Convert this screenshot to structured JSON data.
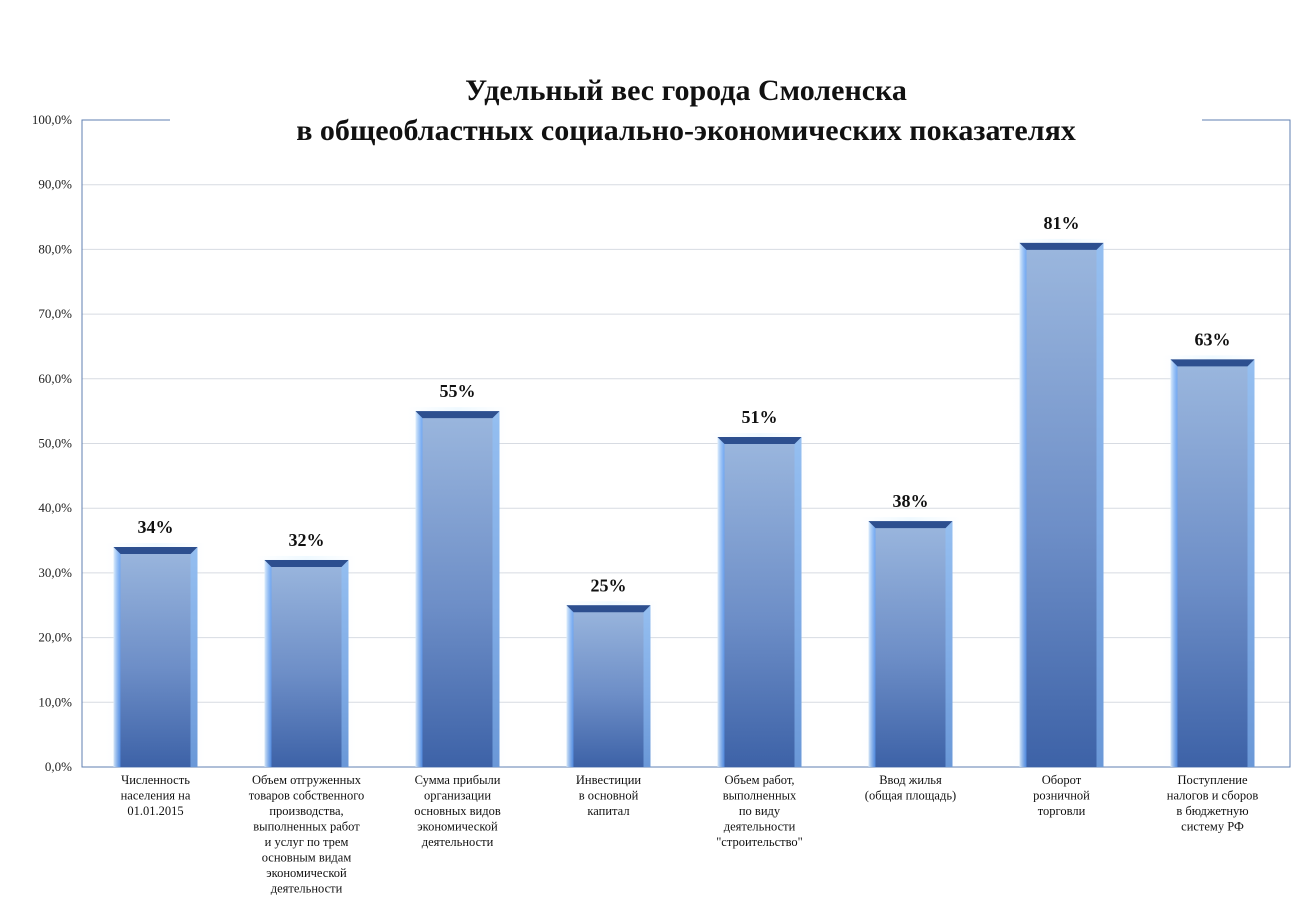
{
  "chart_data": {
    "type": "bar",
    "title_lines": [
      "Удельный вес города Смоленска",
      "в общеобластных социально-экономических показателях"
    ],
    "categories": [
      [
        "Численность",
        "населения на",
        "01.01.2015"
      ],
      [
        "Объем отгруженных",
        "товаров собственного",
        "производства,",
        "выполненных работ",
        "и услуг  по трем",
        "основным видам",
        "экономической",
        "деятельности"
      ],
      [
        "Сумма прибыли",
        "организации",
        "основных видов",
        "экономической",
        "деятельности"
      ],
      [
        "Инвестиции",
        "в основной",
        "капитал"
      ],
      [
        "Объем работ,",
        "выполненных",
        "по виду",
        "деятельности",
        "\"строительство\""
      ],
      [
        "Ввод жилья",
        "(общая площадь)"
      ],
      [
        "Оборот",
        "розничной",
        "торговли"
      ],
      [
        "Поступление",
        "налогов и сборов",
        "в бюджетную",
        "систему РФ"
      ]
    ],
    "values": [
      34,
      32,
      55,
      25,
      51,
      38,
      81,
      63
    ],
    "data_labels": [
      "34%",
      "32%",
      "55%",
      "25%",
      "51%",
      "38%",
      "81%",
      "63%"
    ],
    "y_ticks": [
      "0,0%",
      "10,0%",
      "20,0%",
      "30,0%",
      "40,0%",
      "50,0%",
      "60,0%",
      "70,0%",
      "80,0%",
      "90,0%",
      "100,0%"
    ],
    "ylim": [
      0,
      100
    ],
    "grid": true,
    "legend": "none",
    "colors": {
      "bar_top": "#9bb7de",
      "bar_mid": "#6d8ec7",
      "bar_bottom": "#3d62a7",
      "edge_light": "#cfe6ff",
      "grid": "#d7dbe2",
      "frame": "#5f7fb2"
    }
  }
}
